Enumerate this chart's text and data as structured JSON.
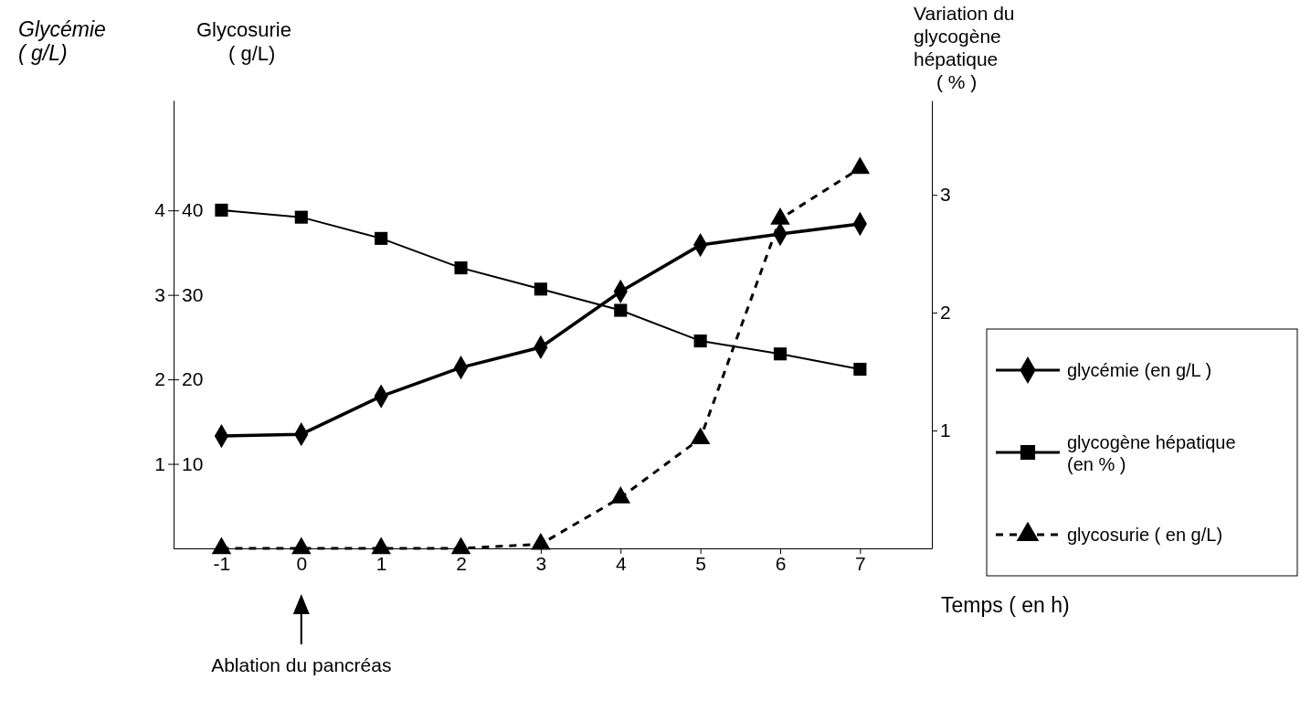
{
  "chart_data": {
    "type": "line",
    "xlabel": "Temps ( en h)",
    "ylabel": "Glycémie ( g/L)",
    "y2label": "Glycosurie ( g/L)",
    "y3label": "Variation du glycogène hépatique ( % )",
    "x": [
      -1,
      0,
      1,
      2,
      3,
      4,
      5,
      6,
      7
    ],
    "xlim": [
      -1.6,
      7.9
    ],
    "xticks": [
      -1,
      0,
      1,
      2,
      3,
      4,
      5,
      6,
      7
    ],
    "ylim": [
      0,
      5.3
    ],
    "yticks": [
      1,
      2,
      3,
      4
    ],
    "y2lim": [
      0,
      53
    ],
    "y2ticks": [
      10,
      20,
      30,
      40
    ],
    "y3lim": [
      0,
      3.8
    ],
    "y3ticks": [
      1,
      2,
      3
    ],
    "legend": "right",
    "grid": false,
    "series": [
      {
        "name": "glycémie (en g/L )",
        "color": "#000000",
        "marker": "diamond",
        "line_style": "solid",
        "values": [
          1.33,
          1.35,
          1.8,
          2.14,
          2.38,
          3.04,
          3.59,
          3.72,
          3.84
        ]
      },
      {
        "name": "glycogène hépatique (en % )",
        "color": "#000000",
        "marker": "square",
        "line_style": "solid",
        "axis": "y3",
        "values": [
          2.87,
          2.81,
          2.63,
          2.38,
          2.2,
          2.02,
          1.76,
          1.65,
          1.52
        ]
      },
      {
        "name": "glycosurie ( en g/L)",
        "color": "#000000",
        "marker": "triangle",
        "line_style": "dashed",
        "axis": "y2",
        "values": [
          0,
          0,
          0,
          0,
          0.5,
          6,
          13,
          39,
          45
        ]
      }
    ],
    "annotations": [
      "Ablation du pancréas"
    ]
  }
}
